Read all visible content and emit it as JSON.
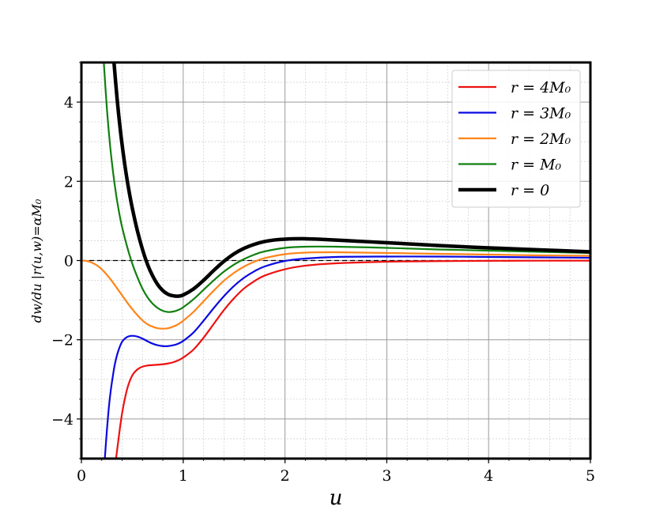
{
  "chart_data": {
    "type": "line",
    "title": "",
    "xlabel": "u",
    "ylabel": "dw/du |r(u,w)=αM₀",
    "xlim": [
      0,
      5
    ],
    "ylim": [
      -5,
      5
    ],
    "x_ticks": [
      "0",
      "1",
      "2",
      "3",
      "4",
      "5"
    ],
    "y_ticks": [
      "−4",
      "−2",
      "0",
      "2",
      "4"
    ],
    "grid": true,
    "minor_grid": true,
    "legend_position": "top-right",
    "reference_line": {
      "y": 0,
      "style": "dashed",
      "color": "#000000"
    },
    "series": [
      {
        "name": "r = 4M₀",
        "color": "#ee1111",
        "width": 2.2,
        "x": [
          0.34,
          0.36,
          0.38,
          0.4,
          0.43,
          0.46,
          0.5,
          0.55,
          0.6,
          0.65,
          0.7,
          0.75,
          0.8,
          0.85,
          0.9,
          0.95,
          1.0,
          1.1,
          1.2,
          1.3,
          1.4,
          1.5,
          1.6,
          1.7,
          1.8,
          2.0,
          2.2,
          2.5,
          3.0,
          3.5,
          4.0,
          4.5,
          5.0
        ],
        "y": [
          -5.0,
          -4.6,
          -4.2,
          -3.85,
          -3.45,
          -3.15,
          -2.9,
          -2.75,
          -2.68,
          -2.65,
          -2.64,
          -2.63,
          -2.62,
          -2.6,
          -2.57,
          -2.52,
          -2.45,
          -2.25,
          -1.95,
          -1.6,
          -1.25,
          -0.95,
          -0.7,
          -0.52,
          -0.38,
          -0.22,
          -0.13,
          -0.07,
          -0.03,
          -0.015,
          -0.008,
          -0.004,
          -0.002
        ]
      },
      {
        "name": "r = 3M₀",
        "color": "#0a0ae0",
        "width": 2.2,
        "x": [
          0.23,
          0.25,
          0.27,
          0.29,
          0.31,
          0.33,
          0.36,
          0.4,
          0.45,
          0.5,
          0.55,
          0.6,
          0.65,
          0.7,
          0.75,
          0.8,
          0.85,
          0.9,
          0.95,
          1.0,
          1.1,
          1.2,
          1.3,
          1.4,
          1.5,
          1.6,
          1.7,
          1.8,
          2.0,
          2.2,
          2.5,
          3.0,
          3.5,
          4.0,
          4.5,
          5.0
        ],
        "y": [
          -5.0,
          -4.3,
          -3.7,
          -3.25,
          -2.9,
          -2.6,
          -2.3,
          -2.05,
          -1.93,
          -1.9,
          -1.92,
          -1.97,
          -2.04,
          -2.1,
          -2.14,
          -2.16,
          -2.16,
          -2.14,
          -2.1,
          -2.03,
          -1.82,
          -1.52,
          -1.2,
          -0.9,
          -0.64,
          -0.43,
          -0.27,
          -0.15,
          -0.01,
          0.05,
          0.09,
          0.1,
          0.1,
          0.09,
          0.08,
          0.07
        ]
      },
      {
        "name": "r = 2M₀",
        "color": "#ff8419",
        "width": 2.2,
        "x": [
          0.0,
          0.05,
          0.1,
          0.15,
          0.2,
          0.25,
          0.3,
          0.35,
          0.4,
          0.45,
          0.5,
          0.55,
          0.6,
          0.65,
          0.7,
          0.75,
          0.8,
          0.85,
          0.9,
          0.95,
          1.0,
          1.1,
          1.2,
          1.3,
          1.4,
          1.5,
          1.6,
          1.7,
          1.8,
          2.0,
          2.2,
          2.5,
          3.0,
          3.5,
          4.0,
          4.5,
          5.0
        ],
        "y": [
          0.0,
          -0.01,
          -0.05,
          -0.12,
          -0.22,
          -0.36,
          -0.52,
          -0.7,
          -0.88,
          -1.06,
          -1.23,
          -1.38,
          -1.51,
          -1.61,
          -1.67,
          -1.71,
          -1.72,
          -1.71,
          -1.67,
          -1.61,
          -1.52,
          -1.3,
          -1.03,
          -0.76,
          -0.51,
          -0.31,
          -0.15,
          -0.03,
          0.06,
          0.16,
          0.2,
          0.21,
          0.19,
          0.17,
          0.15,
          0.13,
          0.12
        ]
      },
      {
        "name": "r = M₀",
        "color": "#10800f",
        "width": 2.2,
        "x": [
          0.22,
          0.25,
          0.28,
          0.31,
          0.34,
          0.37,
          0.4,
          0.45,
          0.5,
          0.55,
          0.6,
          0.65,
          0.7,
          0.75,
          0.8,
          0.85,
          0.9,
          0.95,
          1.0,
          1.1,
          1.2,
          1.3,
          1.4,
          1.5,
          1.6,
          1.7,
          1.8,
          2.0,
          2.2,
          2.5,
          3.0,
          3.5,
          4.0,
          4.5,
          5.0
        ],
        "y": [
          5.0,
          3.85,
          2.95,
          2.25,
          1.68,
          1.22,
          0.84,
          0.34,
          -0.08,
          -0.42,
          -0.71,
          -0.93,
          -1.09,
          -1.2,
          -1.27,
          -1.3,
          -1.29,
          -1.25,
          -1.18,
          -0.98,
          -0.74,
          -0.5,
          -0.28,
          -0.1,
          0.04,
          0.15,
          0.23,
          0.32,
          0.35,
          0.35,
          0.32,
          0.28,
          0.25,
          0.22,
          0.19
        ]
      },
      {
        "name": "r = 0",
        "color": "#000000",
        "width": 4.5,
        "x": [
          0.32,
          0.35,
          0.38,
          0.41,
          0.44,
          0.47,
          0.5,
          0.55,
          0.6,
          0.65,
          0.7,
          0.75,
          0.8,
          0.85,
          0.9,
          0.95,
          1.0,
          1.1,
          1.2,
          1.3,
          1.4,
          1.5,
          1.6,
          1.7,
          1.8,
          1.9,
          2.0,
          2.2,
          2.4,
          2.7,
          3.0,
          3.5,
          4.0,
          4.5,
          5.0
        ],
        "y": [
          5.0,
          4.1,
          3.35,
          2.72,
          2.18,
          1.72,
          1.32,
          0.75,
          0.28,
          -0.1,
          -0.39,
          -0.61,
          -0.76,
          -0.85,
          -0.89,
          -0.9,
          -0.87,
          -0.72,
          -0.5,
          -0.25,
          -0.02,
          0.17,
          0.31,
          0.41,
          0.48,
          0.52,
          0.54,
          0.55,
          0.53,
          0.49,
          0.45,
          0.38,
          0.32,
          0.27,
          0.22
        ]
      }
    ]
  }
}
